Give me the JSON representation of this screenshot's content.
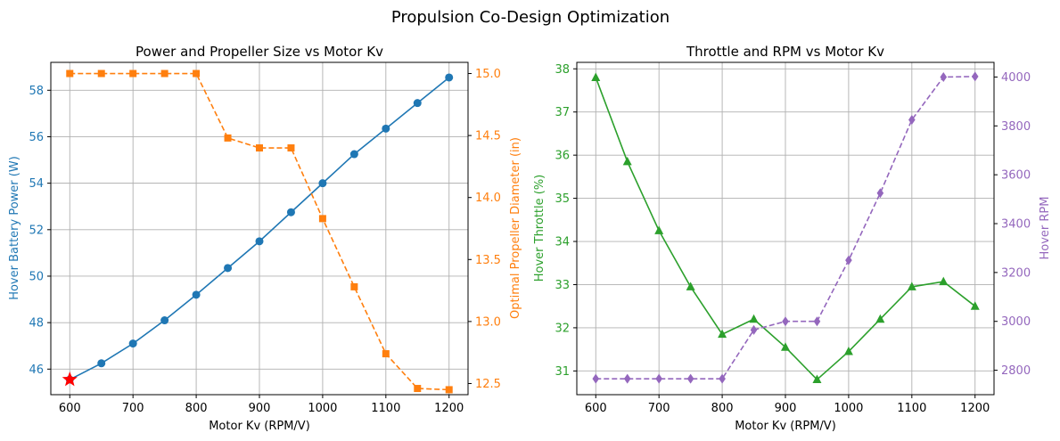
{
  "suptitle": "Propulsion Co-Design Optimization",
  "colors": {
    "power": "#1f77b4",
    "diameter": "#ff7f0e",
    "throttle": "#2ca02c",
    "rpm": "#9467bd",
    "optimum": "#ff0000",
    "grid": "#b0b0b0",
    "axis": "#000000"
  },
  "chart_data": [
    {
      "type": "line",
      "title": "Power and Propeller Size vs Motor Kv",
      "xlabel": "Motor Kv (RPM/V)",
      "ylabel": "Hover Battery Power (W)",
      "y2label": "Optimal Propeller Diameter (in)",
      "x": [
        600,
        650,
        700,
        750,
        800,
        850,
        900,
        950,
        1000,
        1050,
        1100,
        1150,
        1200
      ],
      "xlim": [
        570,
        1230
      ],
      "xticks": [
        600,
        700,
        800,
        900,
        1000,
        1100,
        1200
      ],
      "ylim": [
        44.9,
        59.2
      ],
      "yticks": [
        46,
        48,
        50,
        52,
        54,
        56,
        58
      ],
      "y2lim": [
        12.41,
        15.09
      ],
      "y2ticks": [
        "12.5",
        "13.0",
        "13.5",
        "14.0",
        "14.5",
        "15.0"
      ],
      "grid": true,
      "series": [
        {
          "axis": "left",
          "marker": "circle",
          "dashed": false,
          "colorKey": "power",
          "values": [
            45.55,
            46.25,
            47.1,
            48.1,
            49.2,
            50.35,
            51.5,
            52.75,
            54.0,
            55.25,
            56.35,
            57.45,
            58.55
          ]
        },
        {
          "axis": "right",
          "marker": "square",
          "dashed": true,
          "colorKey": "diameter",
          "values": [
            15.0,
            15.0,
            15.0,
            15.0,
            15.0,
            14.48,
            14.4,
            14.4,
            13.83,
            13.28,
            12.74,
            12.46,
            12.45
          ]
        }
      ],
      "optimum": {
        "x": 600,
        "y": 45.55
      }
    },
    {
      "type": "line",
      "title": "Throttle and RPM vs Motor Kv",
      "xlabel": "Motor Kv (RPM/V)",
      "ylabel": "Hover Throttle (%)",
      "y2label": "Hover RPM",
      "x": [
        600,
        650,
        700,
        750,
        800,
        850,
        900,
        950,
        1000,
        1050,
        1100,
        1150,
        1200
      ],
      "xlim": [
        570,
        1230
      ],
      "xticks": [
        600,
        700,
        800,
        900,
        1000,
        1100,
        1200
      ],
      "ylim": [
        30.45,
        38.15
      ],
      "yticks": [
        31,
        32,
        33,
        34,
        35,
        36,
        37,
        38
      ],
      "y2lim": [
        2700,
        4060
      ],
      "y2ticks": [
        "2800",
        "3000",
        "3200",
        "3400",
        "3600",
        "3800",
        "4000"
      ],
      "grid": true,
      "series": [
        {
          "axis": "left",
          "marker": "triangle",
          "dashed": false,
          "colorKey": "throttle",
          "values": [
            37.8,
            35.85,
            34.25,
            32.95,
            31.85,
            32.2,
            31.55,
            30.8,
            31.45,
            32.2,
            32.95,
            33.07,
            32.5
          ]
        },
        {
          "axis": "right",
          "marker": "diamond",
          "dashed": true,
          "colorKey": "rpm",
          "values": [
            2765,
            2765,
            2765,
            2765,
            2765,
            2965,
            3000,
            3000,
            3250,
            3525,
            3825,
            4000,
            4002
          ]
        }
      ]
    }
  ]
}
